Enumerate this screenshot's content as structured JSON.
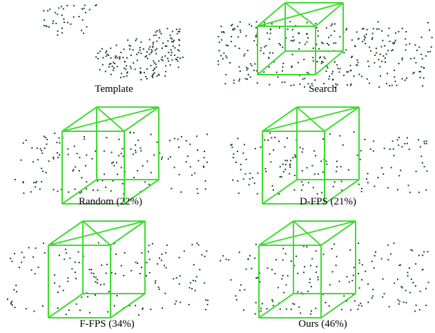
{
  "figure": {
    "point_color": "#1b3a25",
    "box_color": "#3ddc2f",
    "panels": [
      {
        "id": "template",
        "caption": "Template",
        "has_box": false
      },
      {
        "id": "search",
        "caption": "Search",
        "has_box": true
      },
      {
        "id": "random",
        "caption": "Random (22%)",
        "has_box": true
      },
      {
        "id": "dfps",
        "caption": "D-FPS (21%)",
        "has_box": true
      },
      {
        "id": "ffps",
        "caption": "F-FPS (34%)",
        "has_box": true
      },
      {
        "id": "ours",
        "caption": "Ours (46%)",
        "has_box": true
      }
    ]
  }
}
